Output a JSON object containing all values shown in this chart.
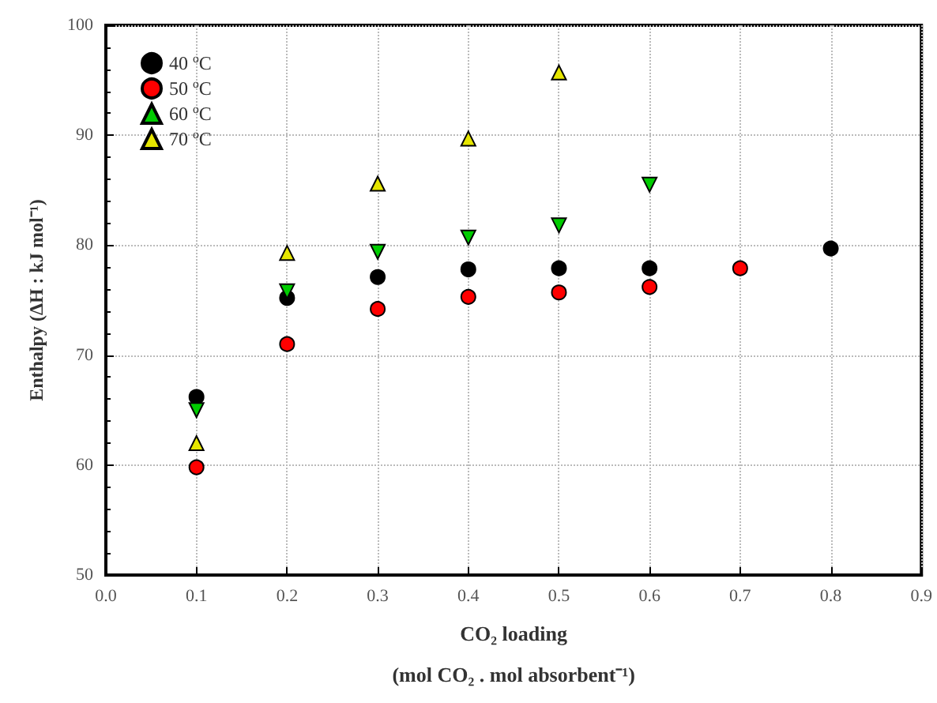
{
  "chart_data": {
    "type": "scatter",
    "xlabel": "CO₂ loading\n(mol CO₂ . mol absorbent⁻¹)",
    "ylabel": "Enthalpy (ΔH : kJ mol⁻¹)",
    "xlim": [
      0,
      0.9
    ],
    "xticks": [
      {
        "value": 0,
        "label": "0.0"
      },
      0.1,
      0.2,
      0.3,
      0.4,
      0.5,
      0.6,
      0.7,
      0.8,
      0.9
    ],
    "ylim": [
      50,
      100
    ],
    "yticks": [
      50,
      60,
      70,
      80,
      90,
      100
    ],
    "grid": true,
    "legend": "top left",
    "series": [
      {
        "name": "40 $^{o}$C",
        "color": "#000000",
        "marker": "circle",
        "x": [
          0.1,
          0.2,
          0.3,
          0.4,
          0.5,
          0.6,
          0.8
        ],
        "values": [
          66.2,
          75.2,
          77.1,
          77.8,
          77.9,
          77.9,
          79.7
        ]
      },
      {
        "name": "50 $^{o}$C",
        "color": "#ff0000",
        "marker": "circle",
        "x": [
          0.1,
          0.2,
          0.3,
          0.4,
          0.5,
          0.6,
          0.7
        ],
        "values": [
          59.8,
          71.0,
          74.2,
          75.3,
          75.7,
          76.2,
          77.9
        ]
      },
      {
        "name": "60 $^{o}$C",
        "color": "#00cc00",
        "marker": "triangle-down",
        "x": [
          0.1,
          0.2,
          0.3,
          0.4,
          0.5,
          0.6
        ],
        "values": [
          65.0,
          75.8,
          79.4,
          80.7,
          81.8,
          85.5
        ]
      },
      {
        "name": "70 $^{o}$C",
        "color": "#e6e600",
        "marker": "triangle",
        "x": [
          0.1,
          0.2,
          0.3,
          0.4,
          0.5
        ],
        "values": [
          62.0,
          79.3,
          85.6,
          89.7,
          95.7
        ]
      }
    ]
  }
}
